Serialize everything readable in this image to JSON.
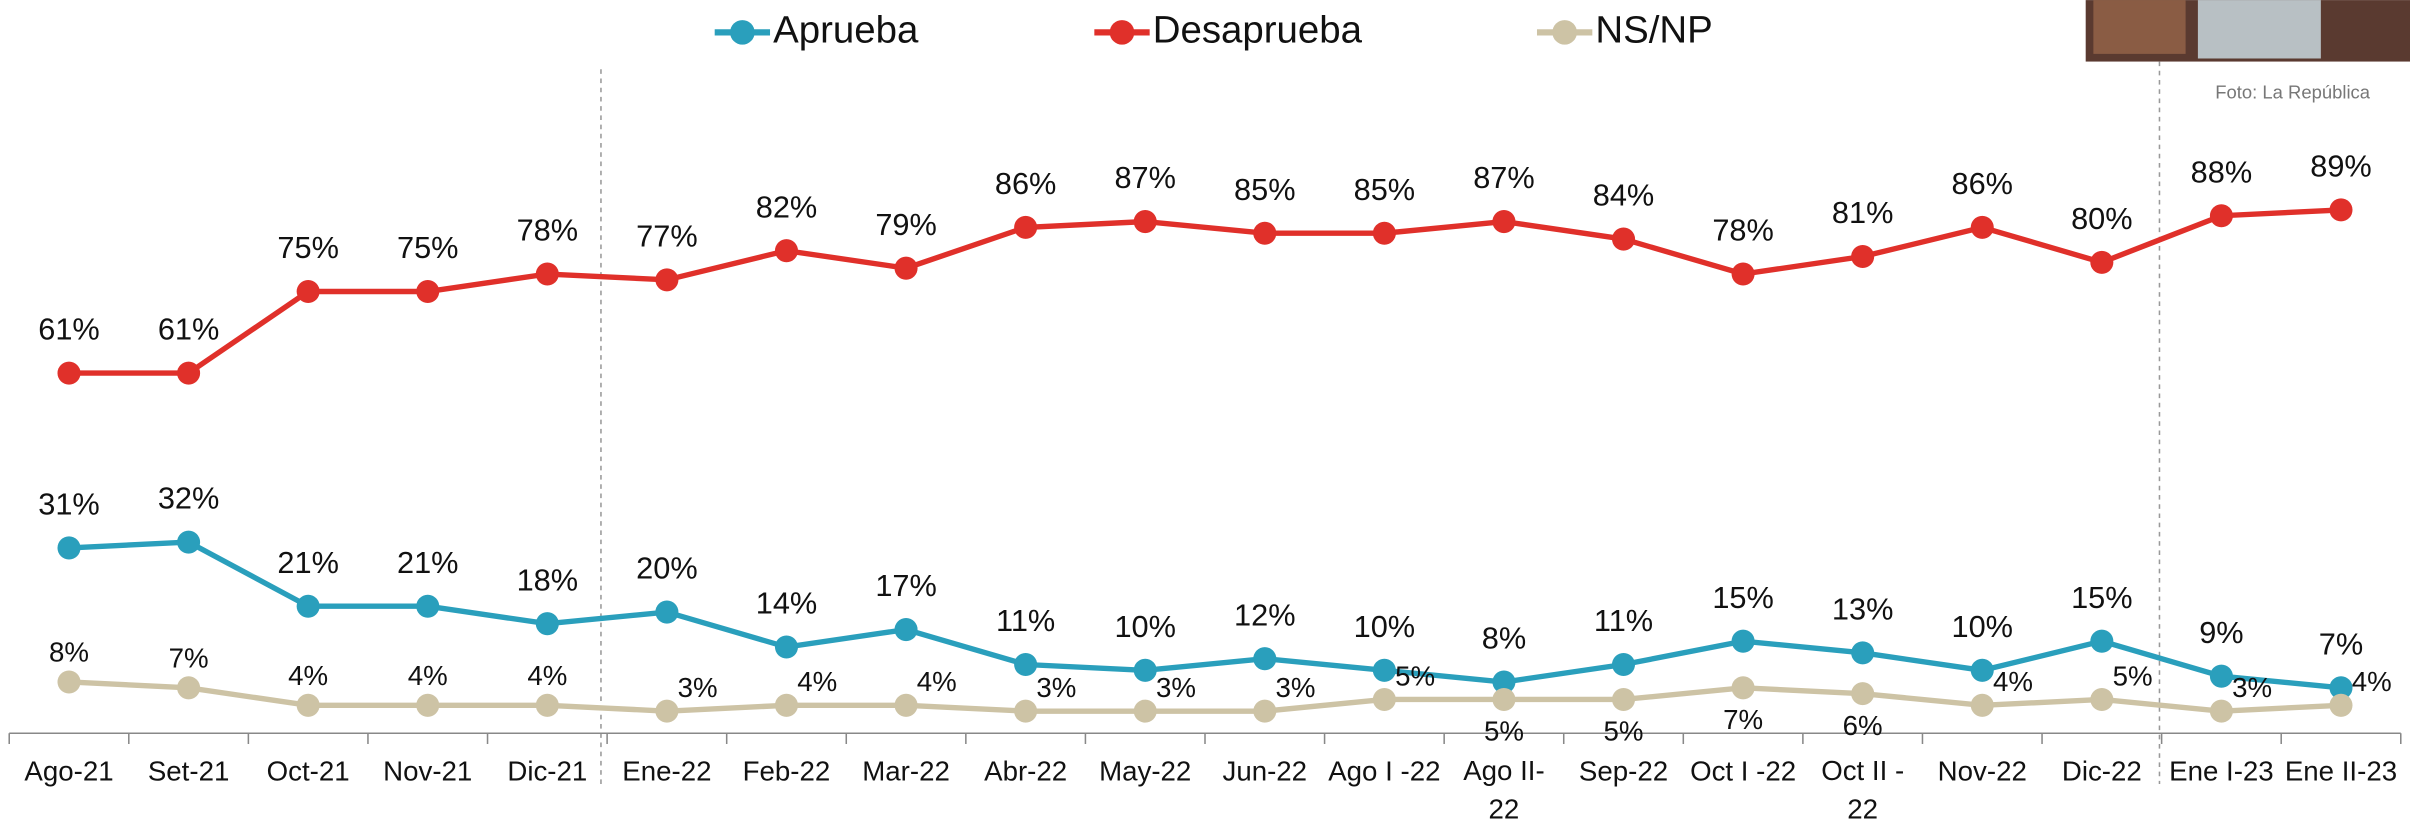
{
  "chart_data": {
    "type": "line",
    "categories": [
      "Ago-21",
      "Set-21",
      "Oct-21",
      "Nov-21",
      "Dic-21",
      "Ene-22",
      "Feb-22",
      "Mar-22",
      "Abr-22",
      "May-22",
      "Jun-22",
      "Ago I -22",
      "Ago II-22",
      "Sep-22",
      "Oct I -22",
      "Oct II -22",
      "Nov-22",
      "Dic-22",
      "Ene I-23",
      "Ene II-23"
    ],
    "series": [
      {
        "name": "Aprueba",
        "color": "#2a9fbc",
        "values": [
          31,
          32,
          21,
          21,
          18,
          20,
          14,
          17,
          11,
          10,
          12,
          10,
          8,
          11,
          15,
          13,
          10,
          15,
          9,
          7
        ],
        "value_labels": [
          "31%",
          "32%",
          "21%",
          "21%",
          "18%",
          "20%",
          "14%",
          "17%",
          "11%",
          "10%",
          "12%",
          "10%",
          "8%",
          "11%",
          "15%",
          "13%",
          "10%",
          "15%",
          "9%",
          "7%"
        ]
      },
      {
        "name": "Desaprueba",
        "color": "#e0302a",
        "values": [
          61,
          61,
          75,
          75,
          78,
          77,
          82,
          79,
          86,
          87,
          85,
          85,
          87,
          84,
          78,
          81,
          86,
          80,
          88,
          89
        ],
        "value_labels": [
          "61%",
          "61%",
          "75%",
          "75%",
          "78%",
          "77%",
          "82%",
          "79%",
          "86%",
          "87%",
          "85%",
          "85%",
          "87%",
          "84%",
          "78%",
          "81%",
          "86%",
          "80%",
          "88%",
          "89%"
        ]
      },
      {
        "name": "NS/NP",
        "color": "#cdc3a5",
        "values": [
          8,
          7,
          4,
          4,
          4,
          3,
          4,
          4,
          3,
          3,
          3,
          5,
          5,
          5,
          7,
          6,
          4,
          5,
          3,
          4
        ],
        "value_labels": [
          "8%",
          "7%",
          "4%",
          "4%",
          "4%",
          "3%",
          "4%",
          "4%",
          "3%",
          "3%",
          "3%",
          "5%",
          "5%",
          "5%",
          "7%",
          "6%",
          "4%",
          "5%",
          "3%",
          "4%"
        ]
      }
    ],
    "ylim": [
      0,
      125
    ],
    "photo_credit": "Foto: La República"
  }
}
